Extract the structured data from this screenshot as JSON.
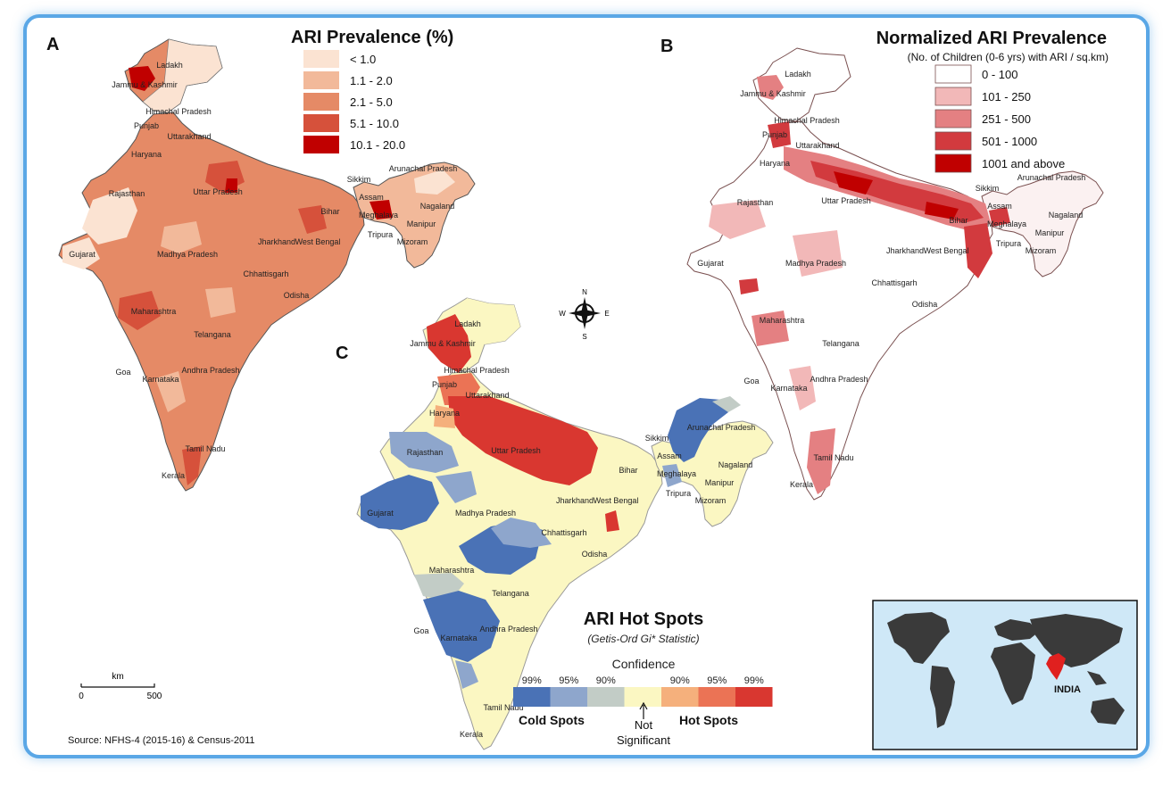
{
  "panel_a": {
    "letter": "A",
    "legend_title": "ARI Prevalence (%)",
    "classes": [
      {
        "label": "< 1.0",
        "color": "#fbe3d2"
      },
      {
        "label": "1.1 - 2.0",
        "color": "#f2b99a"
      },
      {
        "label": "2.1 - 5.0",
        "color": "#e58a66"
      },
      {
        "label": "5.1 - 10.0",
        "color": "#d6513b"
      },
      {
        "label": "10.1 - 20.0",
        "color": "#c00000"
      }
    ],
    "state_labels": [
      "Ladakh",
      "Jammu & Kashmir",
      "Himachal Pradesh",
      "Punjab",
      "Uttarakhand",
      "Haryana",
      "Arunachal Pradesh",
      "Sikkim",
      "Uttar Pradesh",
      "Rajasthan",
      "Assam",
      "Nagaland",
      "Meghalaya",
      "Bihar",
      "Manipur",
      "Tripura",
      "Mizoram",
      "Jharkhand",
      "West Bengal",
      "Gujarat",
      "Madhya Pradesh",
      "Chhattisgarh",
      "Odisha",
      "Maharashtra",
      "Telangana",
      "Andhra Pradesh",
      "Goa",
      "Karnataka",
      "Tamil Nadu",
      "Kerala"
    ]
  },
  "panel_b": {
    "letter": "B",
    "legend_title": "Normalized ARI Prevalence",
    "legend_subtitle": "(No. of Children (0-6 yrs) with ARI / sq.km)",
    "classes": [
      {
        "label": "0 - 100",
        "color": "#ffffff"
      },
      {
        "label": "101 - 250",
        "color": "#f2b8b8"
      },
      {
        "label": "251 - 500",
        "color": "#e48082"
      },
      {
        "label": "501 - 1000",
        "color": "#d23a3e"
      },
      {
        "label": "1001 and above",
        "color": "#c00000"
      }
    ],
    "state_labels": [
      "Ladakh",
      "Jammu & Kashmir",
      "Himachal Pradesh",
      "Punjab",
      "Uttarakhand",
      "Haryana",
      "Arunachal Pradesh",
      "Sikkim",
      "Uttar Pradesh",
      "Rajasthan",
      "Assam",
      "Nagaland",
      "Meghalaya",
      "Bihar",
      "Manipur",
      "Tripura",
      "Mizoram",
      "Jharkhand",
      "West Bengal",
      "Gujarat",
      "Madhya Pradesh",
      "Chhattisgarh",
      "Odisha",
      "Maharashtra",
      "Telangana",
      "Andhra Pradesh",
      "Goa",
      "Karnataka",
      "Tamil Nadu",
      "Kerala"
    ]
  },
  "panel_c": {
    "letter": "C",
    "legend_title": "ARI Hot Spots",
    "legend_subtitle": "(Getis-Ord Gi* Statistic)",
    "confidence_label": "Confidence",
    "bins": [
      {
        "label": "99%",
        "color": "#4a72b6"
      },
      {
        "label": "95%",
        "color": "#8ea6cc"
      },
      {
        "label": "90%",
        "color": "#c2ccc6"
      },
      {
        "label": "",
        "color": "#fbf7c2"
      },
      {
        "label": "90%",
        "color": "#f5b07c"
      },
      {
        "label": "95%",
        "color": "#eb7355"
      },
      {
        "label": "99%",
        "color": "#d93730"
      }
    ],
    "cold_label": "Cold Spots",
    "not_sig_label_1": "Not",
    "not_sig_label_2": "Significant",
    "hot_label": "Hot Spots",
    "state_labels": [
      "Ladakh",
      "Jammu & Kashmir",
      "Himachal Pradesh",
      "Punjab",
      "Uttarakhand",
      "Haryana",
      "Arunachal Pradesh",
      "Sikkim",
      "Uttar Pradesh",
      "Rajasthan",
      "Assam",
      "Nagaland",
      "Meghalaya",
      "Bihar",
      "Manipur",
      "Tripura",
      "Mizoram",
      "Jharkhand",
      "West Bengal",
      "Gujarat",
      "Madhya Pradesh",
      "Chhattisgarh",
      "Odisha",
      "Maharashtra",
      "Telangana",
      "Andhra Pradesh",
      "Goa",
      "Karnataka",
      "Tamil Nadu",
      "Kerala"
    ]
  },
  "compass": {
    "n": "N",
    "s": "S",
    "e": "E",
    "w": "W"
  },
  "scale_bar": {
    "unit": "km",
    "start": "0",
    "end": "500"
  },
  "source": "Source: NFHS-4 (2015-16) & Census-2011",
  "inset": {
    "label": "INDIA",
    "ocean_color": "#cfe8f7",
    "land_color": "#3a3a3a",
    "highlight_color": "#e0201f"
  }
}
